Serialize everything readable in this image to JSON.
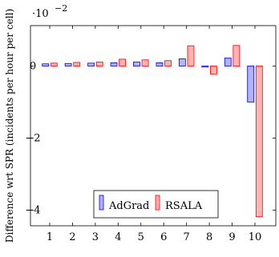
{
  "chart_data": {
    "type": "bar",
    "categories": [
      "1",
      "2",
      "3",
      "4",
      "5",
      "6",
      "7",
      "8",
      "9",
      "10"
    ],
    "series": [
      {
        "name": "AdGrad",
        "values": [
          0.0006,
          0.0007,
          0.0008,
          0.0009,
          0.0011,
          0.0009,
          0.002,
          -0.0003,
          0.0022,
          -0.01
        ],
        "fill": "#b3b3ff",
        "stroke": "#0000ff"
      },
      {
        "name": "RSALA",
        "values": [
          0.0008,
          0.001,
          0.0011,
          0.0019,
          0.0017,
          0.0015,
          0.0056,
          -0.0022,
          0.0057,
          -0.0418
        ],
        "fill": "#ffb3b3",
        "stroke": "#ff0000"
      }
    ],
    "ylabel": "Difference wrt SPR (incidents per hour per cell)",
    "xlabel": "",
    "ylim": [
      -0.0443,
      0.0112
    ],
    "yticks": [
      0,
      -0.02,
      -0.04
    ],
    "ytick_labels": [
      "0",
      "−2",
      "−4"
    ],
    "y_multiplier_base": "·10",
    "y_multiplier_exp": "−2",
    "legend_position": "bottom-center",
    "grid": false
  }
}
